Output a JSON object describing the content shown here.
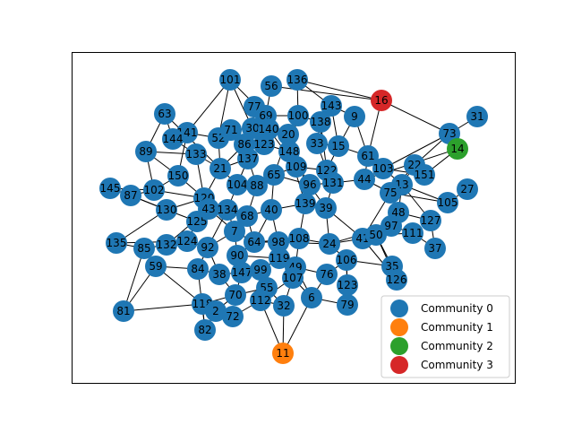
{
  "legend": {
    "entries": [
      {
        "label": "Community 0",
        "color": "#1f77b4"
      },
      {
        "label": "Community 1",
        "color": "#ff7f0e"
      },
      {
        "label": "Community 2",
        "color": "#2ca02c"
      },
      {
        "label": "Community 3",
        "color": "#d62728"
      }
    ]
  },
  "nodes": [
    {
      "id": "101",
      "community": 0
    },
    {
      "id": "56",
      "community": 0
    },
    {
      "id": "136",
      "community": 0
    },
    {
      "id": "16",
      "community": 3
    },
    {
      "id": "143",
      "community": 0
    },
    {
      "id": "77",
      "community": 0
    },
    {
      "id": "69",
      "community": 0
    },
    {
      "id": "100",
      "community": 0
    },
    {
      "id": "138",
      "community": 0
    },
    {
      "id": "9",
      "community": 0
    },
    {
      "id": "63",
      "community": 0
    },
    {
      "id": "31",
      "community": 0
    },
    {
      "id": "73",
      "community": 0
    },
    {
      "id": "14",
      "community": 2
    },
    {
      "id": "141",
      "community": 0
    },
    {
      "id": "144",
      "community": 0
    },
    {
      "id": "52",
      "community": 0
    },
    {
      "id": "71",
      "community": 0
    },
    {
      "id": "30",
      "community": 0
    },
    {
      "id": "140",
      "community": 0
    },
    {
      "id": "20",
      "community": 0
    },
    {
      "id": "89",
      "community": 0
    },
    {
      "id": "133",
      "community": 0
    },
    {
      "id": "86",
      "community": 0
    },
    {
      "id": "123",
      "community": 0
    },
    {
      "id": "33",
      "community": 0
    },
    {
      "id": "15",
      "community": 0
    },
    {
      "id": "61",
      "community": 0
    },
    {
      "id": "22",
      "community": 0
    },
    {
      "id": "151",
      "community": 0
    },
    {
      "id": "145",
      "community": 0
    },
    {
      "id": "87",
      "community": 0
    },
    {
      "id": "102",
      "community": 0
    },
    {
      "id": "150",
      "community": 0
    },
    {
      "id": "21",
      "community": 0
    },
    {
      "id": "137",
      "community": 0
    },
    {
      "id": "148",
      "community": 0
    },
    {
      "id": "109",
      "community": 0
    },
    {
      "id": "122",
      "community": 0
    },
    {
      "id": "103",
      "community": 0
    },
    {
      "id": "27",
      "community": 0
    },
    {
      "id": "105",
      "community": 0
    },
    {
      "id": "130",
      "community": 0
    },
    {
      "id": "120",
      "community": 0
    },
    {
      "id": "104",
      "community": 0
    },
    {
      "id": "88",
      "community": 0
    },
    {
      "id": "65",
      "community": 0
    },
    {
      "id": "96",
      "community": 0
    },
    {
      "id": "131",
      "community": 0
    },
    {
      "id": "44",
      "community": 0
    },
    {
      "id": "13",
      "community": 0
    },
    {
      "id": "75",
      "community": 0
    },
    {
      "id": "76",
      "community": 0
    },
    {
      "id": "125",
      "community": 0
    },
    {
      "id": "43",
      "community": 0
    },
    {
      "id": "134",
      "community": 0
    },
    {
      "id": "68",
      "community": 0
    },
    {
      "id": "40",
      "community": 0
    },
    {
      "id": "139",
      "community": 0
    },
    {
      "id": "39",
      "community": 0
    },
    {
      "id": "48",
      "community": 0
    },
    {
      "id": "97",
      "community": 0
    },
    {
      "id": "127",
      "community": 0
    },
    {
      "id": "111",
      "community": 0
    },
    {
      "id": "135",
      "community": 0
    },
    {
      "id": "85",
      "community": 0
    },
    {
      "id": "132",
      "community": 0
    },
    {
      "id": "124",
      "community": 0
    },
    {
      "id": "92",
      "community": 0
    },
    {
      "id": "7",
      "community": 0
    },
    {
      "id": "64",
      "community": 0
    },
    {
      "id": "98",
      "community": 0
    },
    {
      "id": "108",
      "community": 0
    },
    {
      "id": "24",
      "community": 0
    },
    {
      "id": "41",
      "community": 0
    },
    {
      "id": "50",
      "community": 0
    },
    {
      "id": "37",
      "community": 0
    },
    {
      "id": "59",
      "community": 0
    },
    {
      "id": "84",
      "community": 0
    },
    {
      "id": "90",
      "community": 0
    },
    {
      "id": "119",
      "community": 0
    },
    {
      "id": "49",
      "community": 0
    },
    {
      "id": "106",
      "community": 0
    },
    {
      "id": "35",
      "community": 0
    },
    {
      "id": "126",
      "community": 0
    },
    {
      "id": "38",
      "community": 0
    },
    {
      "id": "147",
      "community": 0
    },
    {
      "id": "99",
      "community": 0
    },
    {
      "id": "107",
      "community": 0
    },
    {
      "id": "55",
      "community": 0
    },
    {
      "id": "70",
      "community": 0
    },
    {
      "id": "112",
      "community": 0
    },
    {
      "id": "6",
      "community": 0
    },
    {
      "id": "81",
      "community": 0
    },
    {
      "id": "118",
      "community": 0
    },
    {
      "id": "2",
      "community": 0
    },
    {
      "id": "72",
      "community": 0
    },
    {
      "id": "32",
      "community": 0
    },
    {
      "id": "79",
      "community": 0
    },
    {
      "id": "82",
      "community": 0
    },
    {
      "id": "11",
      "community": 1
    }
  ]
}
